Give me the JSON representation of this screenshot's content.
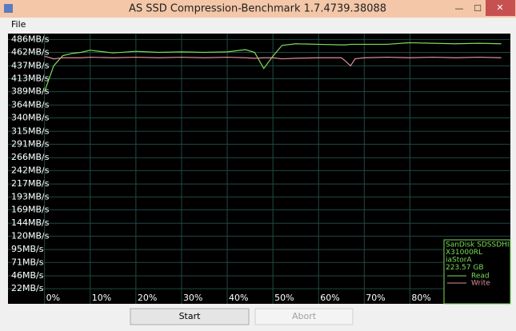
{
  "window": {
    "title": "AS SSD Compression-Benchmark 1.7.4739.38088",
    "menu": [
      "File"
    ],
    "buttons": [
      "Start",
      "Abort"
    ]
  },
  "chart_data": {
    "type": "line",
    "x": [
      0,
      2,
      4,
      6,
      8,
      10,
      15,
      20,
      25,
      30,
      35,
      40,
      44,
      46,
      48,
      50,
      52,
      55,
      60,
      65,
      66,
      67,
      68,
      70,
      75,
      80,
      85,
      90,
      95,
      100
    ],
    "series": [
      {
        "name": "Read",
        "color": "#7ddc5a",
        "values": [
          389,
          437,
          456,
          460,
          462,
          466,
          461,
          464,
          462,
          463,
          462,
          463,
          467,
          462,
          432,
          455,
          475,
          478,
          477,
          476,
          476,
          477,
          477,
          477,
          477,
          480,
          479,
          478,
          479,
          478
        ]
      },
      {
        "name": "Write",
        "color": "#e0909a",
        "values": [
          455,
          450,
          452,
          452,
          452,
          453,
          452,
          453,
          452,
          453,
          452,
          453,
          452,
          451,
          452,
          452,
          450,
          451,
          452,
          452,
          445,
          437,
          450,
          452,
          453,
          452,
          453,
          452,
          453,
          452
        ]
      }
    ],
    "xlim": [
      -8,
      102
    ],
    "xticks": [
      {
        "value": 0,
        "label": "0%"
      },
      {
        "value": 10,
        "label": "10%"
      },
      {
        "value": 20,
        "label": "20%"
      },
      {
        "value": 30,
        "label": "30%"
      },
      {
        "value": 40,
        "label": "40%"
      },
      {
        "value": 50,
        "label": "50%"
      },
      {
        "value": 60,
        "label": "60%"
      },
      {
        "value": 70,
        "label": "70%"
      },
      {
        "value": 80,
        "label": "80%"
      }
    ],
    "ylim": [
      -6,
      497
    ],
    "yticks": [
      {
        "value": 486,
        "label": "486MB/s"
      },
      {
        "value": 462,
        "label": "462MB/s"
      },
      {
        "value": 437,
        "label": "437MB/s"
      },
      {
        "value": 413,
        "label": "413MB/s"
      },
      {
        "value": 389,
        "label": "389MB/s"
      },
      {
        "value": 364,
        "label": "364MB/s"
      },
      {
        "value": 340,
        "label": "340MB/s"
      },
      {
        "value": 315,
        "label": "315MB/s"
      },
      {
        "value": 291,
        "label": "291MB/s"
      },
      {
        "value": 266,
        "label": "266MB/s"
      },
      {
        "value": 242,
        "label": "242MB/s"
      },
      {
        "value": 217,
        "label": "217MB/s"
      },
      {
        "value": 193,
        "label": "193MB/s"
      },
      {
        "value": 169,
        "label": "169MB/s"
      },
      {
        "value": 144,
        "label": "144MB/s"
      },
      {
        "value": 120,
        "label": "120MB/s"
      },
      {
        "value": 95,
        "label": "95MB/s"
      },
      {
        "value": 71,
        "label": "71MB/s"
      },
      {
        "value": 46,
        "label": "46MB/s"
      },
      {
        "value": 22,
        "label": "22MB/s"
      }
    ],
    "grid": true,
    "device": [
      "SanDisk SDSSDHII",
      "X31000RL",
      "iaStorA",
      "223.57 GB"
    ]
  }
}
